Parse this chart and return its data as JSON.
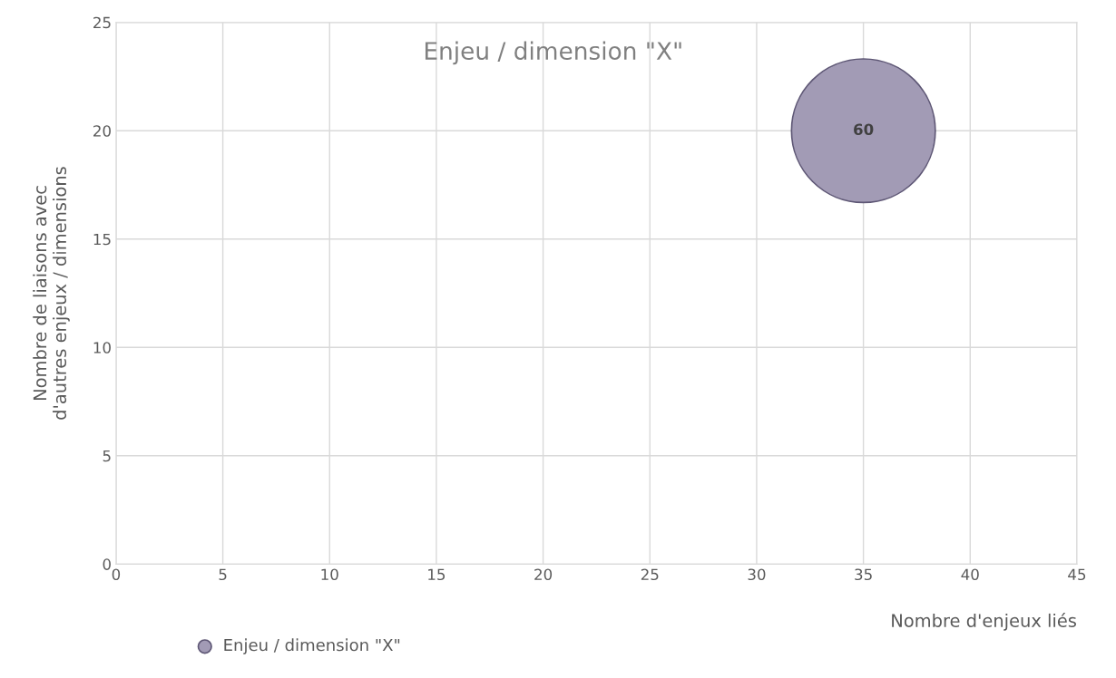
{
  "chart_data": {
    "type": "bubble",
    "title": "Enjeu / dimension \"X\"",
    "xlabel": "Nombre d'enjeux liés",
    "ylabel": "Nombre de liaisons avec\nd'autres enjeux / dimensions",
    "series": [
      {
        "name": "Enjeu / dimension \"X\"",
        "color": "#a29bb5",
        "x": [
          35
        ],
        "values": [
          20
        ],
        "sizes": [
          60
        ],
        "value_labels": [
          "60"
        ]
      }
    ],
    "xlim": [
      0,
      45
    ],
    "xticks": [
      0,
      5,
      10,
      15,
      20,
      25,
      30,
      35,
      40,
      45
    ],
    "ylim": [
      0,
      25
    ],
    "yticks": [
      0,
      5,
      10,
      15,
      20,
      25
    ],
    "grid": true,
    "legend": "bottom left"
  }
}
